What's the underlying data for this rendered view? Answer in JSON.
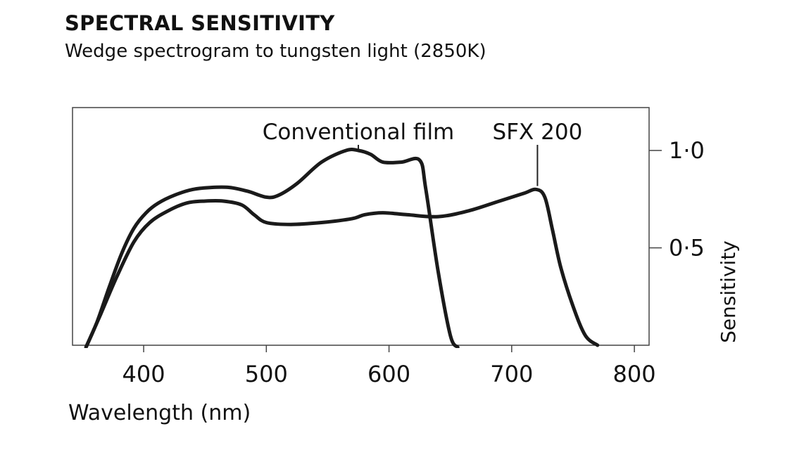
{
  "header": {
    "title": "SPECTRAL SENSITIVITY",
    "subtitle": "Wedge spectrogram to tungsten light (2850K)"
  },
  "chart_data": {
    "type": "line",
    "title": "SPECTRAL SENSITIVITY",
    "subtitle": "Wedge spectrogram to tungsten light (2850K)",
    "xlabel": "Wavelength (nm)",
    "ylabel": "Sensitivity",
    "xlim": [
      342,
      812
    ],
    "ylim": [
      0,
      1.22
    ],
    "x_ticks": [
      400,
      500,
      600,
      700,
      800
    ],
    "x_tick_labels": [
      "400",
      "500",
      "600",
      "700",
      "800"
    ],
    "y_ticks": [
      0.5,
      1.0
    ],
    "y_tick_labels": [
      "0·5",
      "1·0"
    ],
    "y_axis_side": "right",
    "grid": false,
    "series": [
      {
        "name": "Conventional film",
        "x": [
          353,
          362,
          372,
          382,
          392,
          402,
          412,
          425,
          440,
          455,
          470,
          485,
          500,
          510,
          525,
          545,
          565,
          575,
          585,
          595,
          610,
          625,
          630,
          640,
          650,
          656
        ],
        "y": [
          -0.01,
          0.12,
          0.3,
          0.47,
          0.6,
          0.68,
          0.73,
          0.77,
          0.8,
          0.81,
          0.81,
          0.79,
          0.76,
          0.77,
          0.83,
          0.94,
          1.0,
          1.0,
          0.98,
          0.94,
          0.94,
          0.95,
          0.8,
          0.38,
          0.05,
          -0.01
        ]
      },
      {
        "name": "SFX 200",
        "x": [
          353,
          365,
          378,
          392,
          405,
          420,
          435,
          450,
          465,
          480,
          490,
          500,
          520,
          545,
          570,
          580,
          595,
          615,
          640,
          665,
          690,
          710,
          720,
          727,
          733,
          740,
          750,
          760,
          770
        ],
        "y": [
          -0.01,
          0.16,
          0.35,
          0.53,
          0.63,
          0.69,
          0.73,
          0.74,
          0.74,
          0.72,
          0.67,
          0.63,
          0.62,
          0.63,
          0.65,
          0.67,
          0.68,
          0.67,
          0.66,
          0.69,
          0.74,
          0.78,
          0.8,
          0.76,
          0.6,
          0.4,
          0.2,
          0.05,
          0.0
        ]
      }
    ],
    "annotations": [
      {
        "text": "Conventional film",
        "series": "Conventional film",
        "x": 575,
        "y": 1.0
      },
      {
        "text": "SFX 200",
        "series": "SFX 200",
        "x": 721,
        "y": 0.81
      }
    ]
  }
}
